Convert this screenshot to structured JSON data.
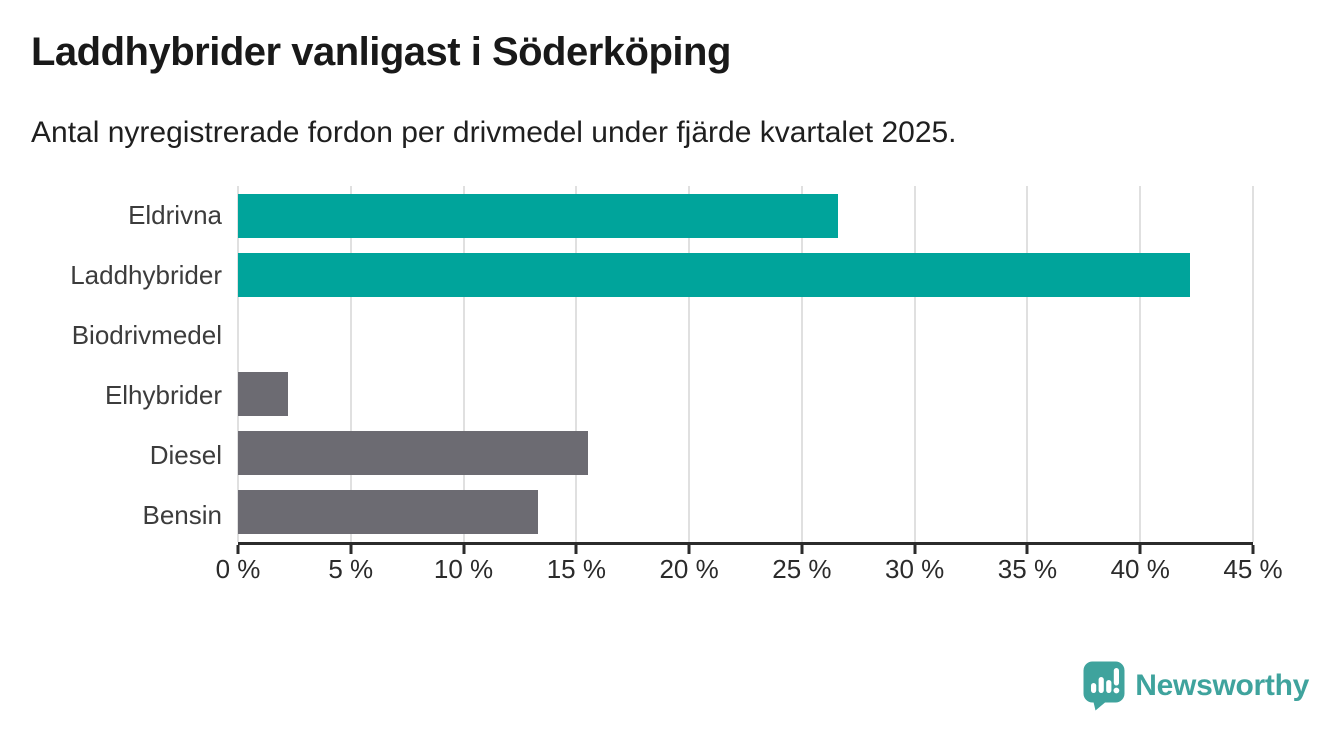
{
  "title": "Laddhybrider vanligast i Söderköping",
  "subtitle": "Antal nyregistrerade fordon per drivmedel under fjärde kvartalet 2025.",
  "chart_data": {
    "type": "bar",
    "orientation": "horizontal",
    "title": "Laddhybrider vanligast i Söderköping",
    "subtitle": "Antal nyregistrerade fordon per drivmedel under fjärde kvartalet 2025.",
    "categories": [
      "Eldrivna",
      "Laddhybrider",
      "Biodrivmedel",
      "Elhybrider",
      "Diesel",
      "Bensin"
    ],
    "values": [
      26.6,
      42.2,
      0,
      2.2,
      15.5,
      13.3
    ],
    "unit": "%",
    "xlim": [
      0,
      45
    ],
    "x_ticks": [
      0,
      5,
      10,
      15,
      20,
      25,
      30,
      35,
      40,
      45
    ],
    "x_tick_labels": [
      "0 %",
      "5 %",
      "10 %",
      "15 %",
      "20 %",
      "25 %",
      "30 %",
      "35 %",
      "40 %",
      "45 %"
    ],
    "grid": true,
    "legend": false,
    "bar_colors": [
      "#00a49b",
      "#00a49b",
      "#6c6b72",
      "#6c6b72",
      "#6c6b72",
      "#6c6b72"
    ]
  },
  "colors": {
    "accent_teal": "#00a49b",
    "neutral_gray": "#6c6b72",
    "gridline": "#e0e0e0",
    "axis": "#2b2b2b",
    "logo_teal": "#3fa39d"
  },
  "logo": {
    "text": "Newsworthy",
    "icon": "newsworthy-speech-bubble-barchart-icon"
  }
}
